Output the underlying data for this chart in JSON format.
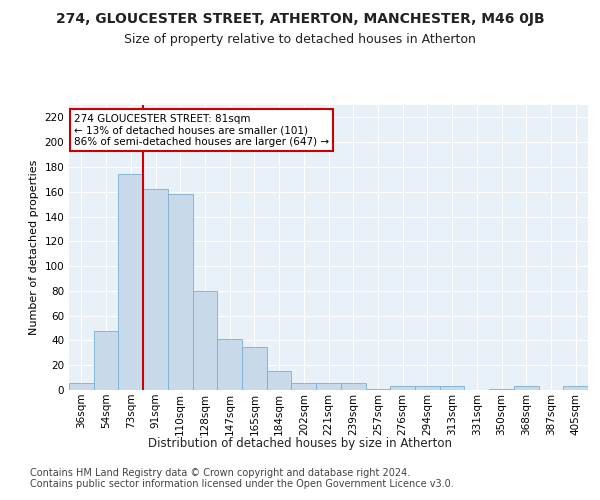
{
  "title1": "274, GLOUCESTER STREET, ATHERTON, MANCHESTER, M46 0JB",
  "title2": "Size of property relative to detached houses in Atherton",
  "xlabel": "Distribution of detached houses by size in Atherton",
  "ylabel": "Number of detached properties",
  "categories": [
    "36sqm",
    "54sqm",
    "73sqm",
    "91sqm",
    "110sqm",
    "128sqm",
    "147sqm",
    "165sqm",
    "184sqm",
    "202sqm",
    "221sqm",
    "239sqm",
    "257sqm",
    "276sqm",
    "294sqm",
    "313sqm",
    "331sqm",
    "350sqm",
    "368sqm",
    "387sqm",
    "405sqm"
  ],
  "values": [
    6,
    48,
    174,
    162,
    158,
    80,
    41,
    35,
    15,
    6,
    6,
    6,
    1,
    3,
    3,
    3,
    0,
    1,
    3,
    0,
    3
  ],
  "bar_color": "#c8daea",
  "bar_edge_color": "#7bafd4",
  "vline_color": "#cc0000",
  "vline_x_index": 2,
  "annotation_text": "274 GLOUCESTER STREET: 81sqm\n← 13% of detached houses are smaller (101)\n86% of semi-detached houses are larger (647) →",
  "annotation_box_facecolor": "#ffffff",
  "annotation_box_edgecolor": "#cc0000",
  "footer": "Contains HM Land Registry data © Crown copyright and database right 2024.\nContains public sector information licensed under the Open Government Licence v3.0.",
  "ylim": [
    0,
    230
  ],
  "yticks": [
    0,
    20,
    40,
    60,
    80,
    100,
    120,
    140,
    160,
    180,
    200,
    220
  ],
  "bg_color": "#ffffff",
  "plot_bg_color": "#e8f0f8",
  "grid_color": "#ffffff",
  "title1_fontsize": 10,
  "title2_fontsize": 9,
  "xlabel_fontsize": 8.5,
  "ylabel_fontsize": 8,
  "tick_fontsize": 7.5,
  "annotation_fontsize": 7.5,
  "footer_fontsize": 7
}
